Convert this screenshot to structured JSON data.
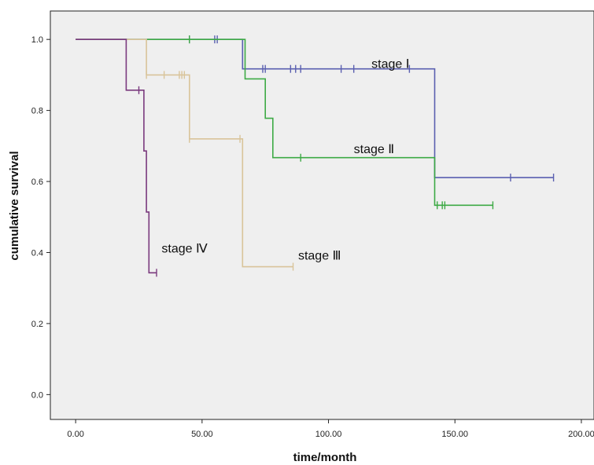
{
  "chart_data": {
    "type": "line",
    "step": true,
    "xlabel": "time/month",
    "ylabel": "cumulative survival",
    "xlim": [
      -10,
      205
    ],
    "ylim": [
      -0.07,
      1.08
    ],
    "x_ticks": [
      0,
      50,
      100,
      150,
      200
    ],
    "x_tick_labels": [
      "0.00",
      "50.00",
      "100.00",
      "150.00",
      "200.00"
    ],
    "y_ticks": [
      0,
      0.2,
      0.4,
      0.6,
      0.8,
      1.0
    ],
    "y_tick_labels": [
      "0.0",
      "0.2",
      "0.4",
      "0.6",
      "0.8",
      "1.0"
    ],
    "grid": false,
    "legend": "inline labels",
    "series": [
      {
        "name": "stage Ⅰ",
        "color": "#5a5fb0",
        "points": [
          [
            0,
            1.0
          ],
          [
            66,
            1.0
          ],
          [
            66,
            0.917
          ],
          [
            142,
            0.917
          ],
          [
            142,
            0.611
          ],
          [
            189,
            0.611
          ]
        ],
        "censored": [
          [
            45,
            1.0
          ],
          [
            55,
            1.0
          ],
          [
            56,
            1.0
          ],
          [
            74,
            0.917
          ],
          [
            75,
            0.917
          ],
          [
            85,
            0.917
          ],
          [
            87,
            0.917
          ],
          [
            89,
            0.917
          ],
          [
            105,
            0.917
          ],
          [
            110,
            0.917
          ],
          [
            132,
            0.917
          ],
          [
            172,
            0.611
          ],
          [
            189,
            0.611
          ]
        ],
        "label_at": [
          117,
          0.92
        ]
      },
      {
        "name": "stage Ⅱ",
        "color": "#3daa45",
        "points": [
          [
            0,
            1.0
          ],
          [
            67,
            1.0
          ],
          [
            67,
            0.889
          ],
          [
            75,
            0.889
          ],
          [
            75,
            0.778
          ],
          [
            78,
            0.778
          ],
          [
            78,
            0.667
          ],
          [
            142,
            0.667
          ],
          [
            142,
            0.533
          ],
          [
            165,
            0.533
          ]
        ],
        "censored": [
          [
            45,
            1.0
          ],
          [
            89,
            0.667
          ],
          [
            143,
            0.533
          ],
          [
            145,
            0.533
          ],
          [
            146,
            0.533
          ],
          [
            165,
            0.533
          ]
        ],
        "label_at": [
          110,
          0.68
        ]
      },
      {
        "name": "stage Ⅲ",
        "color": "#d9c49a",
        "points": [
          [
            0,
            1.0
          ],
          [
            28,
            1.0
          ],
          [
            28,
            0.9
          ],
          [
            45,
            0.9
          ],
          [
            45,
            0.72
          ],
          [
            66,
            0.72
          ],
          [
            66,
            0.36
          ],
          [
            86,
            0.36
          ]
        ],
        "censored": [
          [
            28,
            0.9
          ],
          [
            35,
            0.9
          ],
          [
            41,
            0.9
          ],
          [
            42,
            0.9
          ],
          [
            43,
            0.9
          ],
          [
            45,
            0.72
          ],
          [
            65,
            0.72
          ],
          [
            86,
            0.36
          ]
        ],
        "label_at": [
          88,
          0.38
        ]
      },
      {
        "name": "stage Ⅳ",
        "color": "#7a3a7e",
        "points": [
          [
            0,
            1.0
          ],
          [
            20,
            1.0
          ],
          [
            20,
            0.857
          ],
          [
            26,
            0.857
          ],
          [
            26,
            0.857
          ],
          [
            27,
            0.857
          ],
          [
            27,
            0.686
          ],
          [
            28,
            0.686
          ],
          [
            28,
            0.514
          ],
          [
            29,
            0.514
          ],
          [
            29,
            0.343
          ],
          [
            32,
            0.343
          ]
        ],
        "censored": [
          [
            25,
            0.857
          ],
          [
            32,
            0.343
          ]
        ],
        "label_at": [
          34,
          0.4
        ]
      }
    ]
  }
}
